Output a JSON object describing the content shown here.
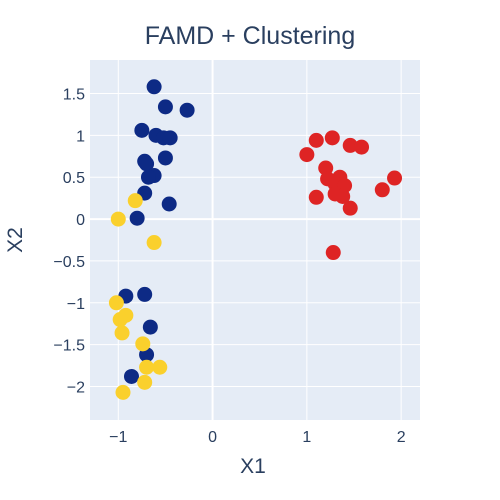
{
  "chart_data": {
    "type": "scatter",
    "title": "FAMD + Clustering",
    "xlabel": "X1",
    "ylabel": "X2",
    "xlim": [
      -1.3,
      2.2
    ],
    "ylim": [
      -2.4,
      1.9
    ],
    "xticks": [
      -1,
      0,
      1,
      2
    ],
    "xtick_labels": [
      "−1",
      "0",
      "1",
      "2"
    ],
    "yticks": [
      -2,
      -1.5,
      -1,
      -0.5,
      0,
      0.5,
      1,
      1.5
    ],
    "ytick_labels": [
      "−2",
      "−1.5",
      "−1",
      "−0.5",
      "0",
      "0.5",
      "1",
      "1.5"
    ],
    "grid": true,
    "legend": "none",
    "plot_bgcolor": "#e5ecf6",
    "series": [
      {
        "color": "#0d2a85",
        "x": [
          -0.62,
          -0.5,
          -0.27,
          -0.75,
          -0.6,
          -0.52,
          -0.45,
          -0.72,
          -0.5,
          -0.7,
          -0.62,
          -0.68,
          -0.72,
          -0.46,
          -0.8,
          -0.92,
          -0.72,
          -0.66,
          -0.7,
          -0.86
        ],
        "y": [
          1.58,
          1.34,
          1.3,
          1.06,
          1.0,
          0.97,
          0.97,
          0.69,
          0.73,
          0.66,
          0.52,
          0.5,
          0.31,
          0.18,
          0.01,
          -0.92,
          -0.9,
          -1.29,
          -1.62,
          -1.88
        ]
      },
      {
        "color": "#fad02c",
        "x": [
          -0.82,
          -1.0,
          -0.62,
          -1.02,
          -0.92,
          -0.98,
          -0.96,
          -0.74,
          -0.7,
          -0.56,
          -0.72,
          -0.95
        ],
        "y": [
          0.22,
          0.0,
          -0.28,
          -1.0,
          -1.15,
          -1.2,
          -1.36,
          -1.49,
          -1.77,
          -1.77,
          -1.95,
          -2.07
        ]
      },
      {
        "color": "#de2424",
        "x": [
          1.1,
          1.27,
          1.0,
          1.46,
          1.58,
          1.2,
          1.35,
          1.22,
          1.93,
          1.3,
          1.4,
          1.8,
          1.1,
          1.3,
          1.38,
          1.46,
          1.28
        ],
        "y": [
          0.94,
          0.97,
          0.77,
          0.88,
          0.86,
          0.61,
          0.5,
          0.48,
          0.49,
          0.42,
          0.4,
          0.35,
          0.26,
          0.3,
          0.27,
          0.13,
          -0.4
        ]
      }
    ]
  }
}
